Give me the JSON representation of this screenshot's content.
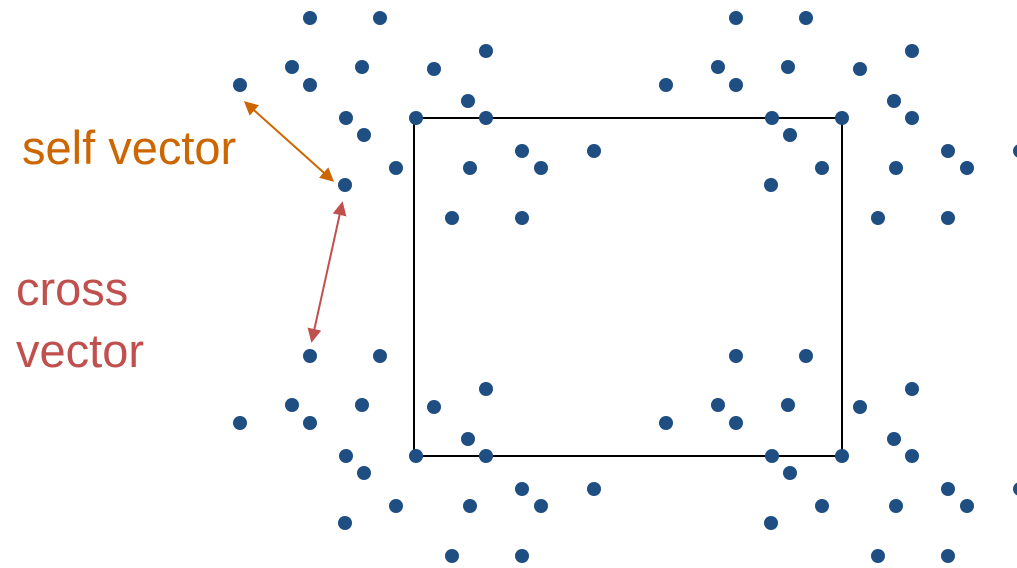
{
  "labels": {
    "self_vector": "self vector",
    "cross_vector_line1": "cross",
    "cross_vector_line2": "vector"
  },
  "colors": {
    "point": "#1f4e82",
    "self_vector": "#cc6600",
    "cross_vector": "#c0504d",
    "cell_box": "#000000",
    "background": "#ffffff"
  }
}
